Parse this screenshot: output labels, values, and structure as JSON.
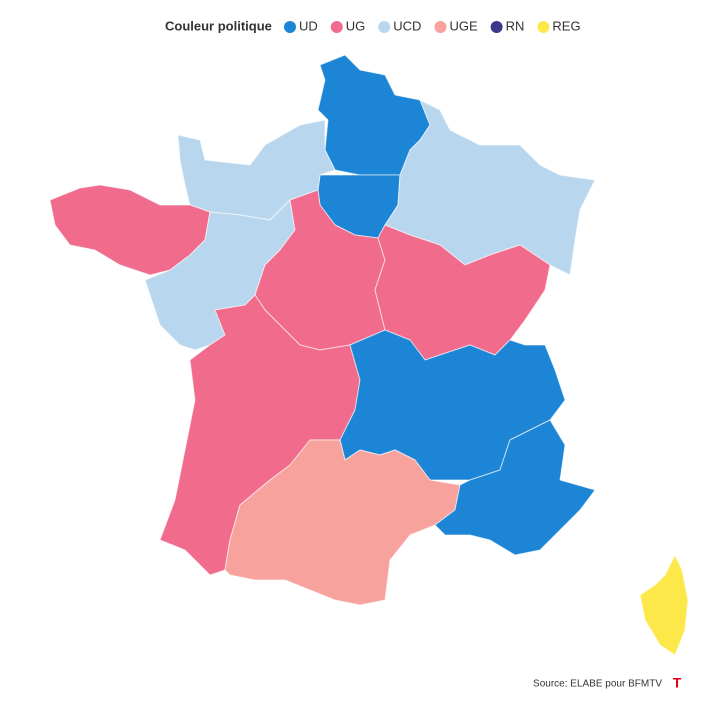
{
  "legend": {
    "title": "Couleur politique",
    "items": [
      {
        "label": "UD",
        "color": "#1c85d6"
      },
      {
        "label": "UG",
        "color": "#f06b8c"
      },
      {
        "label": "UCD",
        "color": "#b8d7ee"
      },
      {
        "label": "UGE",
        "color": "#f7a29d"
      },
      {
        "label": "RN",
        "color": "#3b3a8a"
      },
      {
        "label": "REG",
        "color": "#fde84a"
      }
    ]
  },
  "source": "Source: ELABE pour BFMTV"
}
